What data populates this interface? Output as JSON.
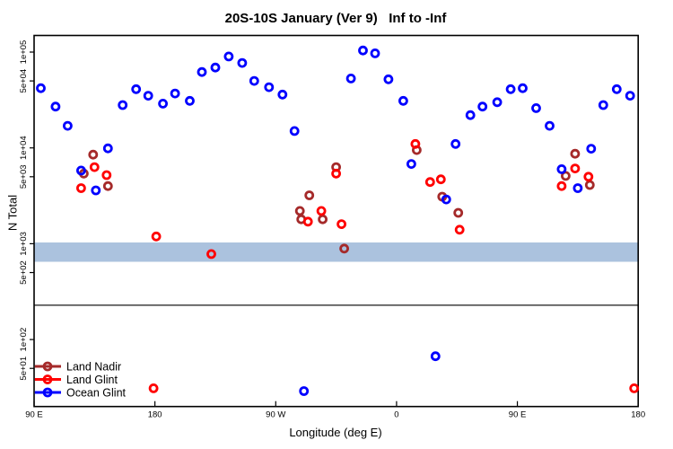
{
  "title": "20S-10S January (Ver 9)   Inf to -Inf",
  "chart_data": {
    "type": "scatter",
    "title": "20S-10S January (Ver 9)   Inf to -Inf",
    "xlabel": "Longitude (deg E)",
    "ylabel": "N Total",
    "x_axis": {
      "range_deg": [
        90,
        540
      ],
      "ticks": [
        {
          "lon": 90,
          "label": "90 E"
        },
        {
          "lon": 180,
          "label": "180"
        },
        {
          "lon": 270,
          "label": "90 W"
        },
        {
          "lon": 360,
          "label": "0"
        },
        {
          "lon": 450,
          "label": "90 E"
        },
        {
          "lon": 540,
          "label": "180"
        }
      ]
    },
    "y_axis": {
      "scale": "log",
      "range": [
        20,
        200000
      ],
      "ticks": [
        {
          "v": 100000,
          "label": "1e+05"
        },
        {
          "v": 50000,
          "label": "5e+04"
        },
        {
          "v": 10000,
          "label": "1e+04"
        },
        {
          "v": 5000,
          "label": "5e+03"
        },
        {
          "v": 1000,
          "label": "1e+03"
        },
        {
          "v": 500,
          "label": "5e+02"
        },
        {
          "v": 100,
          "label": "1e+02"
        },
        {
          "v": 50,
          "label": "5e+01"
        }
      ]
    },
    "divider_line_value": 228,
    "map_strip": {
      "v_top": 1030,
      "v_bottom": 648,
      "ocean_color": "#ABC2DE",
      "land_color": "#FAD689",
      "land_polys": [
        [
          [
            46,
            21.5
          ],
          [
            46,
            15
          ],
          [
            51,
            13
          ],
          [
            55,
            8
          ],
          [
            59,
            10
          ],
          [
            63,
            4
          ],
          [
            68,
            2
          ],
          [
            72,
            5
          ],
          [
            76,
            3
          ],
          [
            81,
            7
          ],
          [
            85,
            11
          ],
          [
            88,
            15
          ],
          [
            89,
            21.5
          ]
        ],
        [
          [
            104,
            0
          ],
          [
            112,
            0
          ],
          [
            110,
            3
          ],
          [
            105,
            2
          ]
        ],
        [
          [
            167,
            5
          ],
          [
            170,
            5
          ],
          [
            170,
            8
          ],
          [
            167,
            8
          ]
        ],
        [
          [
            175,
            9
          ],
          [
            179,
            9
          ],
          [
            179,
            12
          ],
          [
            175,
            12
          ]
        ],
        [
          [
            186,
            6
          ],
          [
            189,
            6
          ],
          [
            189,
            9
          ],
          [
            186,
            9
          ]
        ],
        [
          [
            288,
            0
          ],
          [
            340,
            0
          ],
          [
            338,
            6
          ],
          [
            340,
            10
          ],
          [
            334,
            16
          ],
          [
            331,
            21.5
          ],
          [
            296,
            21.5
          ],
          [
            291,
            14
          ],
          [
            288,
            6
          ]
        ],
        [
          [
            368,
            0
          ],
          [
            373,
            1
          ],
          [
            379,
            14
          ],
          [
            378,
            17
          ],
          [
            372,
            13
          ]
        ],
        [
          [
            425,
            9
          ],
          [
            428,
            3
          ],
          [
            434,
            0
          ],
          [
            457,
            0
          ],
          [
            462,
            3
          ],
          [
            465,
            9
          ],
          [
            463,
            16
          ],
          [
            459,
            21.5
          ],
          [
            432,
            21.5
          ],
          [
            426,
            16
          ]
        ],
        [
          [
            466,
            11
          ],
          [
            469,
            5
          ],
          [
            473,
            4
          ],
          [
            477,
            9
          ],
          [
            476,
            15
          ],
          [
            472,
            21.5
          ],
          [
            467,
            21.5
          ]
        ],
        [
          [
            527,
            4
          ],
          [
            529,
            4
          ],
          [
            529,
            6
          ],
          [
            527,
            6
          ]
        ],
        [
          [
            579,
            21.5
          ],
          [
            579,
            15
          ],
          [
            584,
            13
          ],
          [
            588,
            7
          ],
          [
            593,
            9
          ],
          [
            597,
            3
          ],
          [
            602,
            1
          ],
          [
            606,
            4
          ],
          [
            610,
            2
          ],
          [
            615,
            6
          ],
          [
            620,
            4
          ],
          [
            625,
            8
          ],
          [
            631,
            11
          ],
          [
            636,
            14
          ],
          [
            639,
            17
          ],
          [
            639,
            21.5
          ]
        ],
        [
          [
            643,
            6
          ],
          [
            646,
            6
          ],
          [
            646,
            9
          ],
          [
            643,
            9
          ]
        ],
        [
          [
            649,
            10
          ],
          [
            652,
            10
          ],
          [
            652,
            12
          ],
          [
            649,
            12
          ]
        ],
        [
          [
            656,
            3
          ],
          [
            658,
            3
          ],
          [
            658,
            5
          ],
          [
            656,
            5
          ]
        ],
        [
          [
            661,
            8
          ],
          [
            664,
            8
          ],
          [
            664,
            11
          ],
          [
            661,
            11
          ]
        ],
        [
          [
            669,
            14
          ],
          [
            671,
            14
          ],
          [
            671,
            16
          ],
          [
            669,
            16
          ]
        ],
        [
          [
            671,
            5
          ],
          [
            673,
            5
          ],
          [
            673,
            7
          ],
          [
            671,
            7
          ]
        ]
      ]
    },
    "legend_position": "bottom-left",
    "series": [
      {
        "name": "Land Nadir",
        "color": "#A52A2A",
        "points": [
          {
            "lon": 134,
            "v": 8500
          },
          {
            "lon": 127,
            "v": 5400
          },
          {
            "lon": 145,
            "v": 4000
          },
          {
            "lon": 315,
            "v": 6300
          },
          {
            "lon": 295,
            "v": 3200
          },
          {
            "lon": 288,
            "v": 2200
          },
          {
            "lon": 289,
            "v": 1800
          },
          {
            "lon": 305,
            "v": 1800
          },
          {
            "lon": 321,
            "v": 890
          },
          {
            "lon": 375,
            "v": 9500
          },
          {
            "lon": 394,
            "v": 3100
          },
          {
            "lon": 406,
            "v": 2100
          },
          {
            "lon": 493,
            "v": 8700
          },
          {
            "lon": 486,
            "v": 5100
          },
          {
            "lon": 504,
            "v": 4100
          }
        ]
      },
      {
        "name": "Land Glint",
        "color": "#FF0000",
        "points": [
          {
            "lon": 135,
            "v": 6300
          },
          {
            "lon": 144,
            "v": 5200
          },
          {
            "lon": 125,
            "v": 3800
          },
          {
            "lon": 181,
            "v": 1190
          },
          {
            "lon": 222,
            "v": 780
          },
          {
            "lon": 315,
            "v": 5400
          },
          {
            "lon": 304,
            "v": 2200
          },
          {
            "lon": 294,
            "v": 1700
          },
          {
            "lon": 319,
            "v": 1600
          },
          {
            "lon": 374,
            "v": 11000
          },
          {
            "lon": 385,
            "v": 4400
          },
          {
            "lon": 393,
            "v": 4700
          },
          {
            "lon": 407,
            "v": 1400
          },
          {
            "lon": 493,
            "v": 6100
          },
          {
            "lon": 503,
            "v": 5000
          },
          {
            "lon": 483,
            "v": 4000
          },
          {
            "lon": 179,
            "v": 31
          },
          {
            "lon": 537,
            "v": 31
          }
        ]
      },
      {
        "name": "Ocean Glint",
        "color": "#0000FF",
        "points": [
          {
            "lon": 95,
            "v": 42000
          },
          {
            "lon": 106,
            "v": 27000
          },
          {
            "lon": 115,
            "v": 17000
          },
          {
            "lon": 125,
            "v": 5800
          },
          {
            "lon": 136,
            "v": 3600
          },
          {
            "lon": 145,
            "v": 9900
          },
          {
            "lon": 156,
            "v": 28000
          },
          {
            "lon": 166,
            "v": 41000
          },
          {
            "lon": 175,
            "v": 35000
          },
          {
            "lon": 186,
            "v": 29000
          },
          {
            "lon": 195,
            "v": 37000
          },
          {
            "lon": 206,
            "v": 31000
          },
          {
            "lon": 215,
            "v": 62000
          },
          {
            "lon": 225,
            "v": 69000
          },
          {
            "lon": 235,
            "v": 90000
          },
          {
            "lon": 245,
            "v": 77000
          },
          {
            "lon": 254,
            "v": 50000
          },
          {
            "lon": 265,
            "v": 43000
          },
          {
            "lon": 275,
            "v": 36000
          },
          {
            "lon": 284,
            "v": 15000
          },
          {
            "lon": 326,
            "v": 53000
          },
          {
            "lon": 335,
            "v": 104000
          },
          {
            "lon": 344,
            "v": 97000
          },
          {
            "lon": 354,
            "v": 52000
          },
          {
            "lon": 365,
            "v": 31000
          },
          {
            "lon": 371,
            "v": 6800
          },
          {
            "lon": 397,
            "v": 2900
          },
          {
            "lon": 404,
            "v": 11000
          },
          {
            "lon": 415,
            "v": 22000
          },
          {
            "lon": 424,
            "v": 27000
          },
          {
            "lon": 435,
            "v": 30000
          },
          {
            "lon": 445,
            "v": 41000
          },
          {
            "lon": 454,
            "v": 42000
          },
          {
            "lon": 464,
            "v": 26000
          },
          {
            "lon": 474,
            "v": 17000
          },
          {
            "lon": 483,
            "v": 6000
          },
          {
            "lon": 495,
            "v": 3800
          },
          {
            "lon": 505,
            "v": 9800
          },
          {
            "lon": 514,
            "v": 28000
          },
          {
            "lon": 524,
            "v": 41000
          },
          {
            "lon": 534,
            "v": 35000
          },
          {
            "lon": 291,
            "v": 29
          },
          {
            "lon": 389,
            "v": 67
          }
        ]
      }
    ]
  }
}
